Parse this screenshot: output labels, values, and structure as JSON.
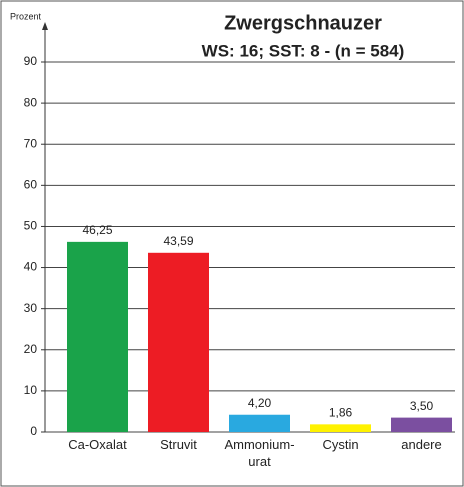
{
  "chart_data": {
    "type": "bar",
    "title": "Zwergschnauzer",
    "subtitle": "WS: 16; SST: 8 - (n = 584)",
    "y_label": "Prozent",
    "categories": [
      "Ca-Oxalat",
      "Struvit",
      "Ammonium-\nurat",
      "Cystin",
      "andere"
    ],
    "values": [
      46.25,
      43.59,
      4.2,
      1.86,
      3.5
    ],
    "value_labels": [
      "46,25",
      "43,59",
      "4,20",
      "1,86",
      "3,50"
    ],
    "colors": [
      "#1aa34a",
      "#ed1c24",
      "#29a9e0",
      "#fff200",
      "#7b4fa0"
    ],
    "ylim": [
      0,
      90
    ],
    "yticks": [
      0,
      10,
      20,
      30,
      40,
      50,
      60,
      70,
      80,
      90
    ],
    "grid": true
  }
}
